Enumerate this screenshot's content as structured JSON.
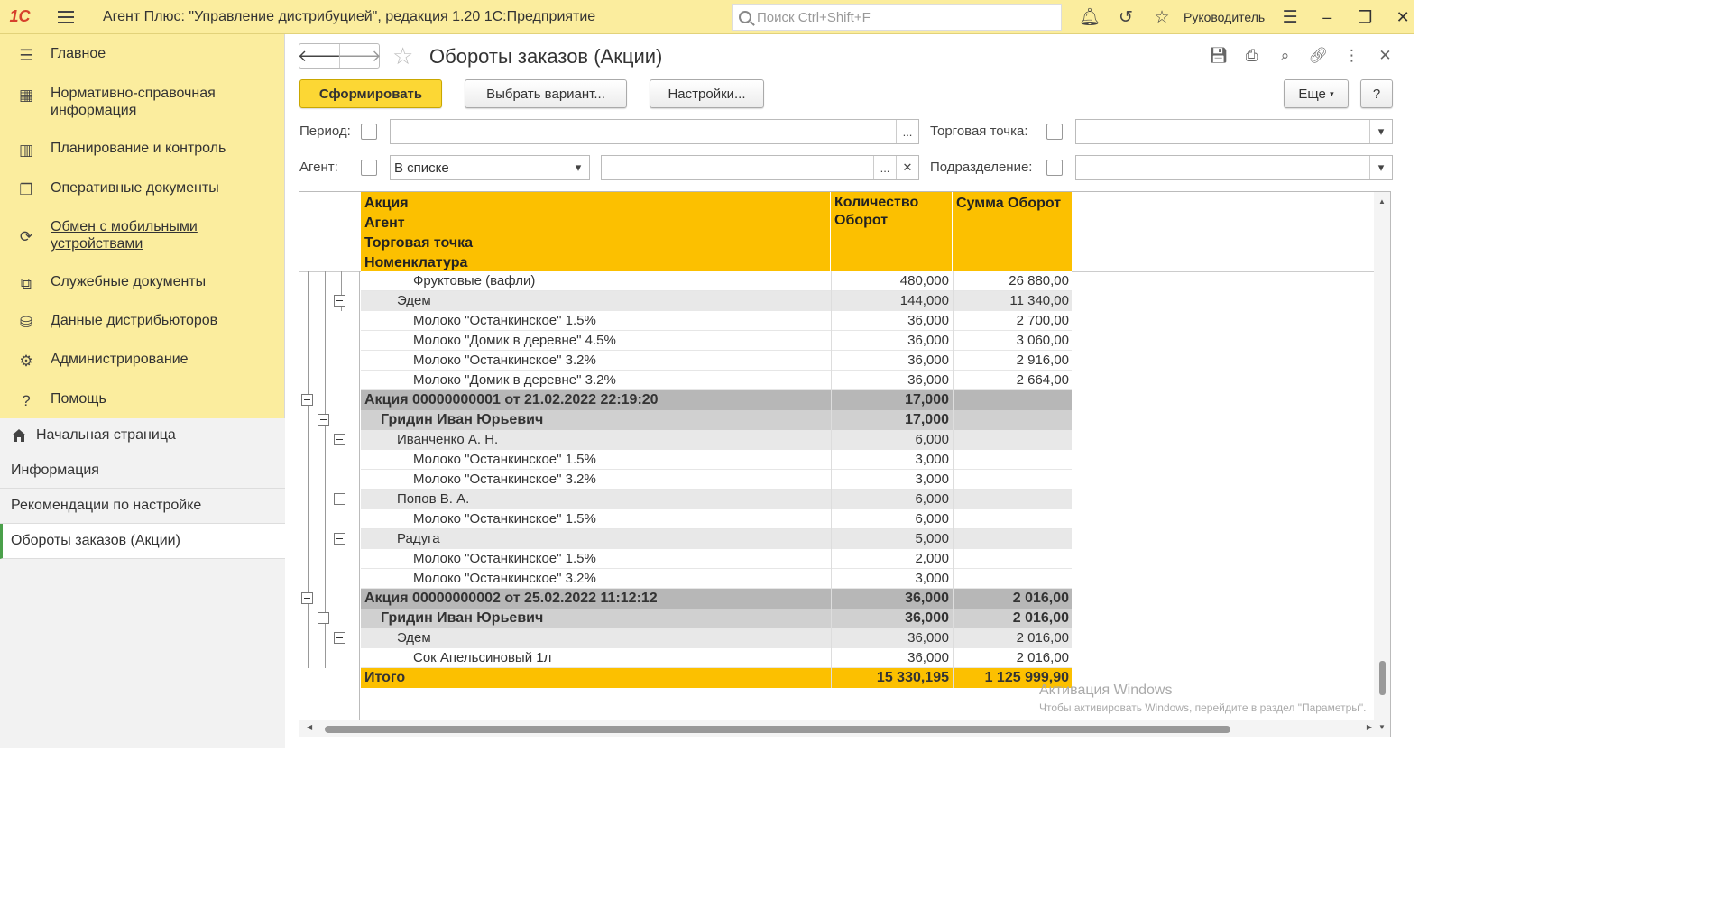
{
  "titlebar": {
    "logo": "1С",
    "app_title": "Агент Плюс: \"Управление дистрибуцией\", редакция 1.20 1С:Предприятие",
    "search_placeholder": "Поиск Ctrl+Shift+F",
    "user": "Руководитель"
  },
  "sidebar": {
    "items": [
      {
        "label": "Главное",
        "icon": "list-icon"
      },
      {
        "label": "Нормативно-справочная информация",
        "icon": "grid-icon"
      },
      {
        "label": "Планирование и контроль",
        "icon": "chart-icon"
      },
      {
        "label": "Оперативные документы",
        "icon": "docs-icon"
      },
      {
        "label": "Обмен с мобильными устройствами",
        "icon": "sync-icon"
      },
      {
        "label": "Служебные документы",
        "icon": "copy-icon"
      },
      {
        "label": "Данные дистрибьюторов",
        "icon": "distributor-icon"
      },
      {
        "label": "Администрирование",
        "icon": "gear-icon"
      },
      {
        "label": "Помощь",
        "icon": "help-icon"
      }
    ],
    "open_windows": [
      {
        "label": "Начальная страница"
      },
      {
        "label": "Информация"
      },
      {
        "label": "Рекомендации по настройке"
      },
      {
        "label": "Обороты заказов (Акции)"
      }
    ]
  },
  "form": {
    "title": "Обороты заказов (Акции)",
    "generate": "Сформировать",
    "select_variant": "Выбрать вариант...",
    "settings": "Настройки...",
    "more": "Еще",
    "help": "?"
  },
  "filters": {
    "period_label": "Период:",
    "period_value": "",
    "agent_label": "Агент:",
    "agent_mode": "В списке",
    "agent_value": "",
    "outlet_label": "Торговая точка:",
    "outlet_value": "",
    "division_label": "Подразделение:",
    "division_value": ""
  },
  "report": {
    "header": {
      "group_lines": [
        "Акция",
        "Агент",
        "Торговая точка",
        "Номенклатура"
      ],
      "qty": "Количество\nОборот",
      "sum": "Сумма Оборот"
    },
    "rows": [
      {
        "level": 3,
        "name": "Фруктовые (вафли)",
        "qty": "480,000",
        "sum": "26 880,00"
      },
      {
        "level": 2,
        "name": "Эдем",
        "qty": "144,000",
        "sum": "11 340,00"
      },
      {
        "level": 3,
        "name": "Молоко \"Останкинское\" 1.5%",
        "qty": "36,000",
        "sum": "2 700,00"
      },
      {
        "level": 3,
        "name": "Молоко \"Домик в деревне\" 4.5%",
        "qty": "36,000",
        "sum": "3 060,00"
      },
      {
        "level": 3,
        "name": "Молоко \"Останкинское\" 3.2%",
        "qty": "36,000",
        "sum": "2 916,00"
      },
      {
        "level": 3,
        "name": "Молоко \"Домик в деревне\" 3.2%",
        "qty": "36,000",
        "sum": "2 664,00"
      },
      {
        "level": 0,
        "name": "Акция 00000000001 от 21.02.2022 22:19:20",
        "qty": "17,000",
        "sum": ""
      },
      {
        "level": 1,
        "name": "Гридин Иван Юрьевич",
        "qty": "17,000",
        "sum": ""
      },
      {
        "level": 2,
        "name": "Иванченко А. Н.",
        "qty": "6,000",
        "sum": ""
      },
      {
        "level": 3,
        "name": "Молоко \"Останкинское\" 1.5%",
        "qty": "3,000",
        "sum": ""
      },
      {
        "level": 3,
        "name": "Молоко \"Останкинское\" 3.2%",
        "qty": "3,000",
        "sum": ""
      },
      {
        "level": 2,
        "name": "Попов В. А.",
        "qty": "6,000",
        "sum": ""
      },
      {
        "level": 3,
        "name": "Молоко \"Останкинское\" 1.5%",
        "qty": "6,000",
        "sum": ""
      },
      {
        "level": 2,
        "name": "Радуга",
        "qty": "5,000",
        "sum": ""
      },
      {
        "level": 3,
        "name": "Молоко \"Останкинское\" 1.5%",
        "qty": "2,000",
        "sum": ""
      },
      {
        "level": 3,
        "name": "Молоко \"Останкинское\" 3.2%",
        "qty": "3,000",
        "sum": ""
      },
      {
        "level": 0,
        "name": "Акция 00000000002 от 25.02.2022 11:12:12",
        "qty": "36,000",
        "sum": "2 016,00"
      },
      {
        "level": 1,
        "name": "Гридин Иван Юрьевич",
        "qty": "36,000",
        "sum": "2 016,00"
      },
      {
        "level": 2,
        "name": "Эдем",
        "qty": "36,000",
        "sum": "2 016,00"
      },
      {
        "level": 3,
        "name": "Сок Апельсиновый 1л",
        "qty": "36,000",
        "sum": "2 016,00"
      }
    ],
    "total": {
      "name": "Итого",
      "qty": "15 330,195",
      "sum": "1 125 999,90"
    }
  },
  "watermark": {
    "line1": "Активация Windows",
    "line2": "Чтобы активировать Windows, перейдите в раздел \"Параметры\"."
  }
}
